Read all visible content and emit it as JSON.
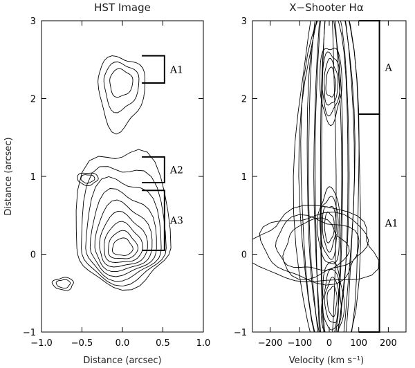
{
  "chart_data": [
    {
      "type": "contour",
      "title": "HST Image",
      "xlabel": "Distance (arcsec)",
      "ylabel": "Distance (arcsec)",
      "xlim": [
        -1.0,
        1.0
      ],
      "ylim": [
        -1,
        3
      ],
      "xticks": [
        -1.0,
        -0.5,
        0.0,
        0.5,
        1.0
      ],
      "xtick_labels": [
        "−1.0",
        "−0.5",
        "0.0",
        "0.5",
        "1.0"
      ],
      "yticks": [
        -1,
        0,
        1,
        2,
        3
      ],
      "ytick_labels": [
        "−1",
        "0",
        "1",
        "2",
        "3"
      ],
      "components": [
        {
          "name": "main",
          "x": 0.0,
          "y": 0.08,
          "levels": 9
        },
        {
          "name": "north",
          "x": -0.02,
          "y": 2.22,
          "levels": 3
        },
        {
          "name": "west",
          "x": -0.43,
          "y": 0.97,
          "levels": 2
        },
        {
          "name": "southwest",
          "x": -0.73,
          "y": -0.38,
          "levels": 2
        }
      ],
      "annotations": [
        {
          "label": "A1",
          "y_top": 2.55,
          "y_bottom": 2.2
        },
        {
          "label": "A2",
          "y_top": 1.25,
          "y_bottom": 0.92
        },
        {
          "label": "A3",
          "y_top": 0.82,
          "y_bottom": 0.05
        }
      ]
    },
    {
      "type": "contour",
      "title": "X−Shooter Hα",
      "xlabel": "Velocity (km s⁻¹)",
      "ylabel": "",
      "xlim": [
        -260,
        260
      ],
      "ylim": [
        -1,
        3
      ],
      "xticks": [
        -200,
        -100,
        0,
        100,
        200
      ],
      "xtick_labels": [
        "−200",
        "−100",
        "0",
        "100",
        "200"
      ],
      "yticks": [
        -1,
        0,
        1,
        2,
        3
      ],
      "ytick_labels": [
        "−1",
        "0",
        "1",
        "2",
        "3"
      ],
      "components": [
        {
          "name": "upper-peak",
          "x": 5,
          "y": 2.2
        },
        {
          "name": "middle-peak",
          "x": 0,
          "y": 0.35
        },
        {
          "name": "lower-peak",
          "x": 10,
          "y": -0.6
        }
      ],
      "annotations": [
        {
          "label": "A",
          "y_top": 3.0,
          "y_bottom": 1.8
        },
        {
          "label": "A1",
          "y_top": 1.8,
          "y_bottom": -1.0
        }
      ]
    }
  ]
}
